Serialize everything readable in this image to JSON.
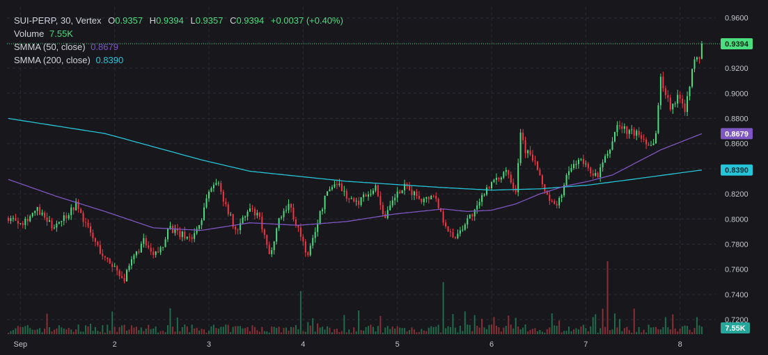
{
  "header": {
    "symbol": "SUI-PERP",
    "interval": "30",
    "exchange": "Vertex",
    "open_label": "O",
    "open": "0.9357",
    "high_label": "H",
    "high": "0.9394",
    "low_label": "L",
    "low": "0.9357",
    "close_label": "C",
    "close": "0.9394",
    "change": "+0.0037 (+0.40%)"
  },
  "legend": {
    "volume_label": "Volume",
    "volume_value": "7.55K",
    "smma50_label": "SMMA (50, close)",
    "smma50_value": "0.8679",
    "smma200_label": "SMMA (200, close)",
    "smma200_value": "0.8390"
  },
  "colors": {
    "up": "#4ade80",
    "down": "#f23645",
    "smma50": "#7e57c2",
    "smma200": "#26c6da",
    "background": "#17171c",
    "grid": "#2a2a33"
  },
  "chart_data": {
    "type": "candlestick",
    "yaxis_ticks": [
      "0.9600",
      "0.9400",
      "0.9200",
      "0.9000",
      "0.8800",
      "0.8600",
      "0.8400",
      "0.8200",
      "0.8000",
      "0.7800",
      "0.7600",
      "0.7400",
      "0.7200"
    ],
    "ylim": [
      0.7073,
      0.9687
    ],
    "xaxis_ticks": [
      "Sep",
      "2",
      "3",
      "4",
      "5",
      "6",
      "7",
      "8"
    ],
    "price_labels": {
      "last": "0.9394",
      "smma50": "0.8679",
      "smma200": "0.8390",
      "volume": "7.55K"
    },
    "anchors": [
      [
        0,
        0.801
      ],
      [
        6,
        0.798
      ],
      [
        12,
        0.807
      ],
      [
        18,
        0.794
      ],
      [
        24,
        0.803
      ],
      [
        28,
        0.812
      ],
      [
        34,
        0.788
      ],
      [
        40,
        0.768
      ],
      [
        44,
        0.762
      ],
      [
        48,
        0.752
      ],
      [
        52,
        0.77
      ],
      [
        56,
        0.782
      ],
      [
        60,
        0.77
      ],
      [
        64,
        0.778
      ],
      [
        66,
        0.795
      ],
      [
        70,
        0.788
      ],
      [
        76,
        0.785
      ],
      [
        80,
        0.8
      ],
      [
        82,
        0.818
      ],
      [
        86,
        0.831
      ],
      [
        90,
        0.812
      ],
      [
        94,
        0.79
      ],
      [
        100,
        0.808
      ],
      [
        104,
        0.8
      ],
      [
        108,
        0.77
      ],
      [
        112,
        0.8
      ],
      [
        116,
        0.812
      ],
      [
        120,
        0.792
      ],
      [
        124,
        0.77
      ],
      [
        128,
        0.798
      ],
      [
        132,
        0.822
      ],
      [
        136,
        0.83
      ],
      [
        140,
        0.818
      ],
      [
        144,
        0.812
      ],
      [
        148,
        0.82
      ],
      [
        152,
        0.825
      ],
      [
        156,
        0.8
      ],
      [
        160,
        0.818
      ],
      [
        164,
        0.825
      ],
      [
        168,
        0.82
      ],
      [
        172,
        0.815
      ],
      [
        176,
        0.82
      ],
      [
        180,
        0.8
      ],
      [
        184,
        0.784
      ],
      [
        188,
        0.794
      ],
      [
        190,
        0.8
      ],
      [
        194,
        0.808
      ],
      [
        198,
        0.826
      ],
      [
        202,
        0.83
      ],
      [
        206,
        0.84
      ],
      [
        210,
        0.823
      ],
      [
        212,
        0.87
      ],
      [
        214,
        0.855
      ],
      [
        218,
        0.845
      ],
      [
        220,
        0.832
      ],
      [
        224,
        0.815
      ],
      [
        226,
        0.81
      ],
      [
        228,
        0.815
      ],
      [
        232,
        0.838
      ],
      [
        236,
        0.848
      ],
      [
        240,
        0.84
      ],
      [
        244,
        0.833
      ],
      [
        246,
        0.845
      ],
      [
        248,
        0.85
      ],
      [
        252,
        0.875
      ],
      [
        256,
        0.87
      ],
      [
        260,
        0.868
      ],
      [
        264,
        0.862
      ],
      [
        266,
        0.858
      ],
      [
        268,
        0.868
      ],
      [
        270,
        0.912
      ],
      [
        272,
        0.9
      ],
      [
        274,
        0.89
      ],
      [
        278,
        0.898
      ],
      [
        280,
        0.888
      ],
      [
        282,
        0.908
      ],
      [
        284,
        0.926
      ],
      [
        286,
        0.928
      ],
      [
        287,
        0.9394
      ]
    ],
    "smma50": [
      [
        0,
        0.8315
      ],
      [
        20,
        0.818
      ],
      [
        40,
        0.806
      ],
      [
        60,
        0.793
      ],
      [
        80,
        0.791
      ],
      [
        100,
        0.797
      ],
      [
        120,
        0.795
      ],
      [
        140,
        0.798
      ],
      [
        160,
        0.804
      ],
      [
        180,
        0.808
      ],
      [
        190,
        0.806
      ],
      [
        200,
        0.807
      ],
      [
        210,
        0.812
      ],
      [
        220,
        0.82
      ],
      [
        230,
        0.826
      ],
      [
        240,
        0.83
      ],
      [
        250,
        0.835
      ],
      [
        260,
        0.845
      ],
      [
        270,
        0.855
      ],
      [
        287,
        0.8679
      ]
    ],
    "smma200": [
      [
        0,
        0.88
      ],
      [
        40,
        0.868
      ],
      [
        80,
        0.847
      ],
      [
        100,
        0.838
      ],
      [
        140,
        0.83
      ],
      [
        180,
        0.825
      ],
      [
        200,
        0.823
      ],
      [
        220,
        0.824
      ],
      [
        240,
        0.827
      ],
      [
        260,
        0.832
      ],
      [
        287,
        0.839
      ]
    ]
  }
}
